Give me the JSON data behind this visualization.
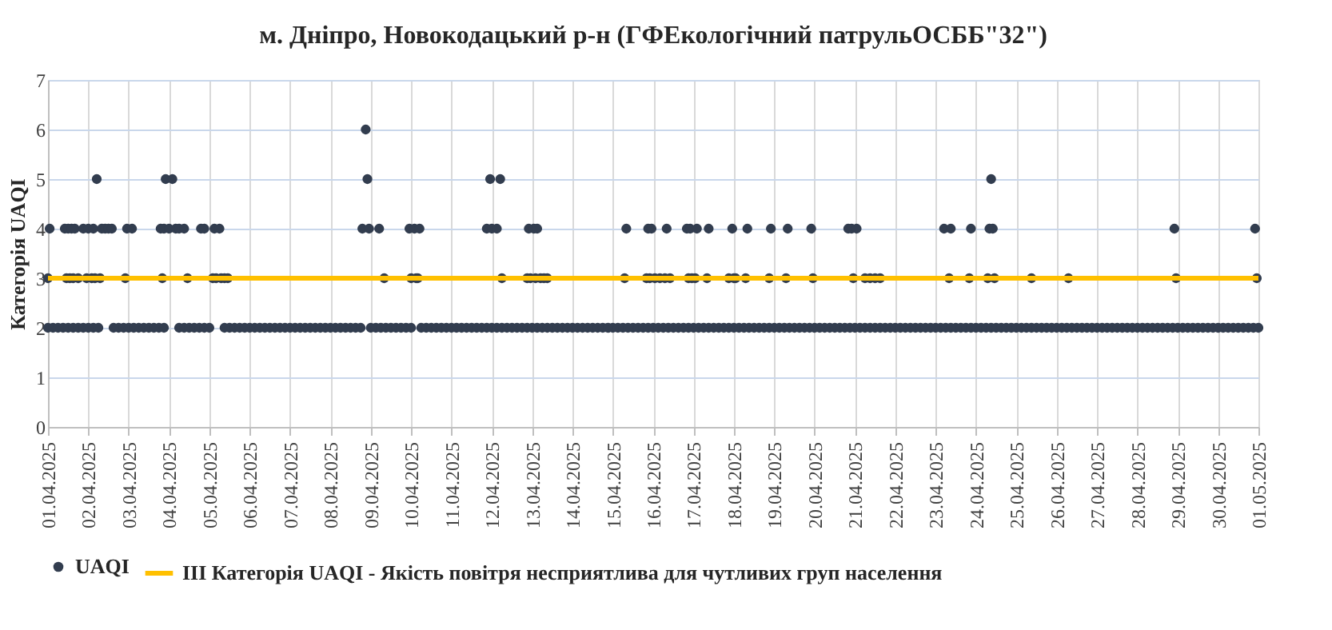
{
  "chart_data": {
    "type": "scatter",
    "title": "м. Дніпро, Новокодацький р-н (ГФЕкологічний патрульОСББ\"32\")",
    "ylabel": "Категорія UAQI",
    "xlim": [
      "2025-04-01",
      "2025-05-01"
    ],
    "ylim": [
      0,
      7
    ],
    "yticks": [
      0,
      1,
      2,
      3,
      4,
      5,
      6,
      7
    ],
    "xticks": [
      {
        "value": "2025-04-01",
        "label": "01.04.2025"
      },
      {
        "value": "2025-04-02",
        "label": "02.04.2025"
      },
      {
        "value": "2025-04-03",
        "label": "03.04.2025"
      },
      {
        "value": "2025-04-04",
        "label": "04.04.2025"
      },
      {
        "value": "2025-04-05",
        "label": "05.04.2025"
      },
      {
        "value": "2025-04-06",
        "label": "06.04.2025"
      },
      {
        "value": "2025-04-07",
        "label": "07.04.2025"
      },
      {
        "value": "2025-04-08",
        "label": "08.04.2025"
      },
      {
        "value": "2025-04-09",
        "label": "09.04.2025"
      },
      {
        "value": "2025-04-10",
        "label": "10.04.2025"
      },
      {
        "value": "2025-04-11",
        "label": "11.04.2025"
      },
      {
        "value": "2025-04-12",
        "label": "12.04.2025"
      },
      {
        "value": "2025-04-13",
        "label": "13.04.2025"
      },
      {
        "value": "2025-04-14",
        "label": "14.04.2025"
      },
      {
        "value": "2025-04-15",
        "label": "15.04.2025"
      },
      {
        "value": "2025-04-16",
        "label": "16.04.2025"
      },
      {
        "value": "2025-04-17",
        "label": "17.04.2025"
      },
      {
        "value": "2025-04-18",
        "label": "18.04.2025"
      },
      {
        "value": "2025-04-19",
        "label": "19.04.2025"
      },
      {
        "value": "2025-04-20",
        "label": "20.04.2025"
      },
      {
        "value": "2025-04-21",
        "label": "21.04.2025"
      },
      {
        "value": "2025-04-22",
        "label": "22.04.2025"
      },
      {
        "value": "2025-04-23",
        "label": "23.04.2025"
      },
      {
        "value": "2025-04-24",
        "label": "24.04.2025"
      },
      {
        "value": "2025-04-25",
        "label": "25.04.2025"
      },
      {
        "value": "2025-04-26",
        "label": "26.04.2025"
      },
      {
        "value": "2025-04-27",
        "label": "27.04.2025"
      },
      {
        "value": "2025-04-28",
        "label": "28.04.2025"
      },
      {
        "value": "2025-04-29",
        "label": "29.04.2025"
      },
      {
        "value": "2025-04-30",
        "label": "30.04.2025"
      },
      {
        "value": "2025-05-01",
        "label": "01.05.2025"
      }
    ],
    "grid": true,
    "legend": "bottom",
    "marker": "circle",
    "ref_lines": [
      {
        "axis": "y",
        "value": 3,
        "label": "III Категорія UAQI - Якість повітря несприятлива для чутливих груп населення",
        "color": "#ffc000",
        "line_style": "solid"
      }
    ],
    "series": [
      {
        "name": "UAQI",
        "color": "#323d4f",
        "x": [
          "2025-04-01T00:00",
          "2025-04-01T03:00",
          "2025-04-01T06:00",
          "2025-04-01T09:00",
          "2025-04-01T12:00",
          "2025-04-01T15:00",
          "2025-04-01T18:00",
          "2025-04-01T21:00",
          "2025-04-02T00:00",
          "2025-04-02T03:00",
          "2025-04-02T06:00",
          "2025-04-02T15:00",
          "2025-04-02T18:00",
          "2025-04-02T21:00",
          "2025-04-03T00:00",
          "2025-04-03T03:00",
          "2025-04-03T06:00",
          "2025-04-03T09:00",
          "2025-04-03T12:00",
          "2025-04-03T15:00",
          "2025-04-03T18:00",
          "2025-04-03T21:00",
          "2025-04-04T06:00",
          "2025-04-04T09:00",
          "2025-04-04T12:00",
          "2025-04-04T15:00",
          "2025-04-04T18:00",
          "2025-04-04T21:00",
          "2025-04-05T00:00",
          "2025-04-05T09:00",
          "2025-04-05T12:00",
          "2025-04-05T15:00",
          "2025-04-05T18:00",
          "2025-04-05T21:00",
          "2025-04-06T00:00",
          "2025-04-06T03:00",
          "2025-04-06T06:00",
          "2025-04-06T09:00",
          "2025-04-06T12:00",
          "2025-04-06T15:00",
          "2025-04-06T18:00",
          "2025-04-06T21:00",
          "2025-04-07T00:00",
          "2025-04-07T03:00",
          "2025-04-07T06:00",
          "2025-04-07T09:00",
          "2025-04-07T12:00",
          "2025-04-07T15:00",
          "2025-04-07T18:00",
          "2025-04-07T21:00",
          "2025-04-08T00:00",
          "2025-04-08T03:00",
          "2025-04-08T06:00",
          "2025-04-08T09:00",
          "2025-04-08T12:00",
          "2025-04-08T15:00",
          "2025-04-08T18:00",
          "2025-04-09T00:00",
          "2025-04-09T03:00",
          "2025-04-09T06:00",
          "2025-04-09T09:00",
          "2025-04-09T12:00",
          "2025-04-09T15:00",
          "2025-04-09T18:00",
          "2025-04-09T21:00",
          "2025-04-10T00:00",
          "2025-04-10T06:00",
          "2025-04-10T09:00",
          "2025-04-10T12:00",
          "2025-04-10T15:00",
          "2025-04-10T18:00",
          "2025-04-10T21:00",
          "2025-04-11T00:00",
          "2025-04-11T03:00",
          "2025-04-11T06:00",
          "2025-04-11T09:00",
          "2025-04-11T12:00",
          "2025-04-11T15:00",
          "2025-04-11T18:00",
          "2025-04-11T21:00",
          "2025-04-12T00:00",
          "2025-04-12T03:00",
          "2025-04-12T06:00",
          "2025-04-12T09:00",
          "2025-04-12T12:00",
          "2025-04-12T15:00",
          "2025-04-12T18:00",
          "2025-04-12T21:00",
          "2025-04-13T00:00",
          "2025-04-13T03:00",
          "2025-04-13T06:00",
          "2025-04-13T09:00",
          "2025-04-13T12:00",
          "2025-04-13T15:00",
          "2025-04-13T18:00",
          "2025-04-13T21:00",
          "2025-04-14T00:00",
          "2025-04-14T03:00",
          "2025-04-14T06:00",
          "2025-04-14T09:00",
          "2025-04-14T12:00",
          "2025-04-14T15:00",
          "2025-04-14T18:00",
          "2025-04-14T21:00",
          "2025-04-15T00:00",
          "2025-04-15T03:00",
          "2025-04-15T06:00",
          "2025-04-15T09:00",
          "2025-04-15T12:00",
          "2025-04-15T15:00",
          "2025-04-15T18:00",
          "2025-04-15T21:00",
          "2025-04-16T00:00",
          "2025-04-16T03:00",
          "2025-04-16T06:00",
          "2025-04-16T09:00",
          "2025-04-16T12:00",
          "2025-04-16T15:00",
          "2025-04-16T18:00",
          "2025-04-16T21:00",
          "2025-04-17T00:00",
          "2025-04-17T03:00",
          "2025-04-17T06:00",
          "2025-04-17T09:00",
          "2025-04-17T12:00",
          "2025-04-17T15:00",
          "2025-04-17T18:00",
          "2025-04-17T21:00",
          "2025-04-18T00:00",
          "2025-04-18T03:00",
          "2025-04-18T06:00",
          "2025-04-18T09:00",
          "2025-04-18T12:00",
          "2025-04-18T15:00",
          "2025-04-18T18:00",
          "2025-04-18T21:00",
          "2025-04-19T00:00",
          "2025-04-19T03:00",
          "2025-04-19T06:00",
          "2025-04-19T09:00",
          "2025-04-19T12:00",
          "2025-04-19T15:00",
          "2025-04-19T18:00",
          "2025-04-19T21:00",
          "2025-04-20T00:00",
          "2025-04-20T03:00",
          "2025-04-20T06:00",
          "2025-04-20T09:00",
          "2025-04-20T12:00",
          "2025-04-20T15:00",
          "2025-04-20T18:00",
          "2025-04-20T21:00",
          "2025-04-21T00:00",
          "2025-04-21T03:00",
          "2025-04-21T06:00",
          "2025-04-21T09:00",
          "2025-04-21T12:00",
          "2025-04-21T15:00",
          "2025-04-21T18:00",
          "2025-04-21T21:00",
          "2025-04-22T00:00",
          "2025-04-22T03:00",
          "2025-04-22T06:00",
          "2025-04-22T09:00",
          "2025-04-22T12:00",
          "2025-04-22T15:00",
          "2025-04-22T18:00",
          "2025-04-22T21:00",
          "2025-04-23T00:00",
          "2025-04-23T03:00",
          "2025-04-23T06:00",
          "2025-04-23T09:00",
          "2025-04-23T12:00",
          "2025-04-23T15:00",
          "2025-04-23T18:00",
          "2025-04-23T21:00",
          "2025-04-24T00:00",
          "2025-04-24T03:00",
          "2025-04-24T06:00",
          "2025-04-24T09:00",
          "2025-04-24T12:00",
          "2025-04-24T15:00",
          "2025-04-24T18:00",
          "2025-04-24T21:00",
          "2025-04-25T00:00",
          "2025-04-25T03:00",
          "2025-04-25T06:00",
          "2025-04-25T09:00",
          "2025-04-25T12:00",
          "2025-04-25T15:00",
          "2025-04-25T18:00",
          "2025-04-25T21:00",
          "2025-04-26T00:00",
          "2025-04-26T03:00",
          "2025-04-26T06:00",
          "2025-04-26T09:00",
          "2025-04-26T12:00",
          "2025-04-26T15:00",
          "2025-04-26T18:00",
          "2025-04-26T21:00",
          "2025-04-27T00:00",
          "2025-04-27T03:00",
          "2025-04-27T06:00",
          "2025-04-27T09:00",
          "2025-04-27T12:00",
          "2025-04-27T15:00",
          "2025-04-27T18:00",
          "2025-04-27T21:00",
          "2025-04-28T00:00",
          "2025-04-28T03:00",
          "2025-04-28T06:00",
          "2025-04-28T09:00",
          "2025-04-28T12:00",
          "2025-04-28T15:00",
          "2025-04-28T18:00",
          "2025-04-28T21:00",
          "2025-04-29T00:00",
          "2025-04-29T03:00",
          "2025-04-29T06:00",
          "2025-04-29T09:00",
          "2025-04-29T12:00",
          "2025-04-29T15:00",
          "2025-04-29T18:00",
          "2025-04-29T21:00",
          "2025-04-30T00:00",
          "2025-04-30T03:00",
          "2025-04-30T06:00",
          "2025-04-30T09:00",
          "2025-04-30T12:00",
          "2025-04-30T15:00",
          "2025-04-30T18:00",
          "2025-04-30T21:00",
          "2025-05-01T00:00",
          "2025-04-01T01:00",
          "2025-04-01T10:00",
          "2025-04-01T12:00",
          "2025-04-01T14:00",
          "2025-04-01T16:00",
          "2025-04-01T21:00",
          "2025-04-02T00:00",
          "2025-04-02T03:00",
          "2025-04-02T08:00",
          "2025-04-02T10:00",
          "2025-04-02T12:00",
          "2025-04-02T14:00",
          "2025-04-02T23:00",
          "2025-04-03T02:00",
          "2025-04-03T19:00",
          "2025-04-03T21:00",
          "2025-04-04T00:00",
          "2025-04-04T04:00",
          "2025-04-04T06:00",
          "2025-04-04T09:00",
          "2025-04-04T19:00",
          "2025-04-04T21:00",
          "2025-04-05T03:00",
          "2025-04-05T06:00",
          "2025-04-08T19:00",
          "2025-04-08T23:00",
          "2025-04-09T05:00",
          "2025-04-09T23:00",
          "2025-04-10T02:00",
          "2025-04-10T05:00",
          "2025-04-11T21:00",
          "2025-04-12T00:00",
          "2025-04-12T03:00",
          "2025-04-12T22:00",
          "2025-04-13T01:00",
          "2025-04-13T03:00",
          "2025-04-15T08:00",
          "2025-04-15T21:00",
          "2025-04-15T23:00",
          "2025-04-16T08:00",
          "2025-04-16T20:00",
          "2025-04-16T22:00",
          "2025-04-17T02:00",
          "2025-04-17T09:00",
          "2025-04-17T23:00",
          "2025-04-18T08:00",
          "2025-04-18T22:00",
          "2025-04-19T08:00",
          "2025-04-19T22:00",
          "2025-04-20T20:00",
          "2025-04-20T22:00",
          "2025-04-21T01:00",
          "2025-04-23T05:00",
          "2025-04-23T09:00",
          "2025-04-23T21:00",
          "2025-04-24T08:00",
          "2025-04-24T10:00",
          "2025-04-28T22:00",
          "2025-04-30T22:00",
          "2025-04-02T05:00",
          "2025-04-03T22:00",
          "2025-04-04T02:00",
          "2025-04-08T22:00",
          "2025-04-11T23:00",
          "2025-04-12T05:00",
          "2025-04-24T09:00",
          "2025-04-08T21:00",
          "2025-04-01T00:00",
          "2025-04-01T11:00",
          "2025-04-01T13:00",
          "2025-04-01T15:00",
          "2025-04-01T18:00",
          "2025-04-01T23:00",
          "2025-04-02T02:00",
          "2025-04-02T04:00",
          "2025-04-02T07:00",
          "2025-04-02T22:00",
          "2025-04-03T20:00",
          "2025-04-04T11:00",
          "2025-04-05T02:00",
          "2025-04-05T04:00",
          "2025-04-05T07:00",
          "2025-04-05T09:00",
          "2025-04-05T11:00",
          "2025-04-09T08:00",
          "2025-04-10T00:00",
          "2025-04-10T03:00",
          "2025-04-10T04:00",
          "2025-04-12T06:00",
          "2025-04-12T21:00",
          "2025-04-12T23:00",
          "2025-04-13T02:00",
          "2025-04-13T05:00",
          "2025-04-13T07:00",
          "2025-04-13T09:00",
          "2025-04-15T07:00",
          "2025-04-15T20:00",
          "2025-04-15T22:00",
          "2025-04-16T01:00",
          "2025-04-16T04:00",
          "2025-04-16T07:00",
          "2025-04-16T10:00",
          "2025-04-16T21:00",
          "2025-04-16T23:00",
          "2025-04-17T01:00",
          "2025-04-17T08:00",
          "2025-04-17T21:00",
          "2025-04-18T00:00",
          "2025-04-18T01:00",
          "2025-04-18T07:00",
          "2025-04-18T21:00",
          "2025-04-19T07:00",
          "2025-04-19T23:00",
          "2025-04-20T23:00",
          "2025-04-21T06:00",
          "2025-04-21T09:00",
          "2025-04-21T12:00",
          "2025-04-21T15:00",
          "2025-04-23T08:00",
          "2025-04-23T20:00",
          "2025-04-24T07:00",
          "2025-04-24T11:00",
          "2025-04-25T09:00",
          "2025-04-26T07:00",
          "2025-04-28T23:00",
          "2025-04-30T23:00"
        ],
        "values": [
          2,
          2,
          2,
          2,
          2,
          2,
          2,
          2,
          2,
          2,
          2,
          2,
          2,
          2,
          2,
          2,
          2,
          2,
          2,
          2,
          2,
          2,
          2,
          2,
          2,
          2,
          2,
          2,
          2,
          2,
          2,
          2,
          2,
          2,
          2,
          2,
          2,
          2,
          2,
          2,
          2,
          2,
          2,
          2,
          2,
          2,
          2,
          2,
          2,
          2,
          2,
          2,
          2,
          2,
          2,
          2,
          2,
          2,
          2,
          2,
          2,
          2,
          2,
          2,
          2,
          2,
          2,
          2,
          2,
          2,
          2,
          2,
          2,
          2,
          2,
          2,
          2,
          2,
          2,
          2,
          2,
          2,
          2,
          2,
          2,
          2,
          2,
          2,
          2,
          2,
          2,
          2,
          2,
          2,
          2,
          2,
          2,
          2,
          2,
          2,
          2,
          2,
          2,
          2,
          2,
          2,
          2,
          2,
          2,
          2,
          2,
          2,
          2,
          2,
          2,
          2,
          2,
          2,
          2,
          2,
          2,
          2,
          2,
          2,
          2,
          2,
          2,
          2,
          2,
          2,
          2,
          2,
          2,
          2,
          2,
          2,
          2,
          2,
          2,
          2,
          2,
          2,
          2,
          2,
          2,
          2,
          2,
          2,
          2,
          2,
          2,
          2,
          2,
          2,
          2,
          2,
          2,
          2,
          2,
          2,
          2,
          2,
          2,
          2,
          2,
          2,
          2,
          2,
          2,
          2,
          2,
          2,
          2,
          2,
          2,
          2,
          2,
          2,
          2,
          2,
          2,
          2,
          2,
          2,
          2,
          2,
          2,
          2,
          2,
          2,
          2,
          2,
          2,
          2,
          2,
          2,
          2,
          2,
          2,
          2,
          2,
          2,
          2,
          2,
          2,
          2,
          2,
          2,
          2,
          2,
          2,
          2,
          2,
          2,
          2,
          2,
          2,
          2,
          2,
          2,
          2,
          2,
          2,
          2,
          2,
          2,
          2,
          2,
          2,
          2,
          2,
          2,
          2,
          4,
          4,
          4,
          4,
          4,
          4,
          4,
          4,
          4,
          4,
          4,
          4,
          4,
          4,
          4,
          4,
          4,
          4,
          4,
          4,
          4,
          4,
          4,
          4,
          4,
          4,
          4,
          4,
          4,
          4,
          4,
          4,
          4,
          4,
          4,
          4,
          4,
          4,
          4,
          4,
          4,
          4,
          4,
          4,
          4,
          4,
          4,
          4,
          4,
          4,
          4,
          4,
          4,
          4,
          4,
          4,
          4,
          4,
          4,
          5,
          5,
          5,
          5,
          5,
          5,
          5,
          6,
          3,
          3,
          3,
          3,
          3,
          3,
          3,
          3,
          3,
          3,
          3,
          3,
          3,
          3,
          3,
          3,
          3,
          3,
          3,
          3,
          3,
          3,
          3,
          3,
          3,
          3,
          3,
          3,
          3,
          3,
          3,
          3,
          3,
          3,
          3,
          3,
          3,
          3,
          3,
          3,
          3,
          3,
          3,
          3,
          3,
          3,
          3,
          3,
          3,
          3,
          3,
          3,
          3,
          3,
          3,
          3,
          3,
          3,
          3
        ]
      }
    ]
  }
}
